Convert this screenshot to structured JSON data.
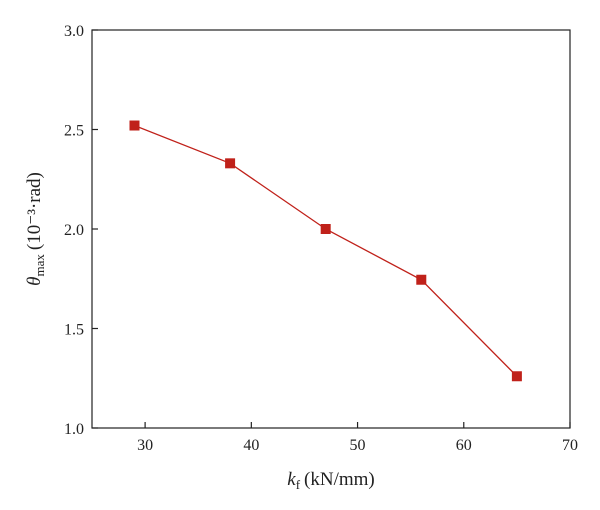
{
  "chart_data": {
    "type": "line",
    "title": "",
    "xlabel": {
      "symbol": "k",
      "subscript": "f",
      "unit": "(kN/mm)"
    },
    "ylabel": {
      "symbol": "θ",
      "subscript": "max",
      "unit": "(10⁻³·rad)"
    },
    "xlim": [
      25,
      70
    ],
    "ylim": [
      1.0,
      3.0
    ],
    "xticks": [
      "30",
      "40",
      "50",
      "60",
      "70"
    ],
    "yticks": [
      "1.0",
      "1.5",
      "2.0",
      "2.5",
      "3.0"
    ],
    "grid": false,
    "legend": "none",
    "series": [
      {
        "color": "#c0211a",
        "marker": "square",
        "x": [
          29,
          38,
          47,
          56,
          65
        ],
        "y": [
          2.52,
          2.33,
          2.0,
          1.745,
          1.26
        ]
      }
    ]
  }
}
